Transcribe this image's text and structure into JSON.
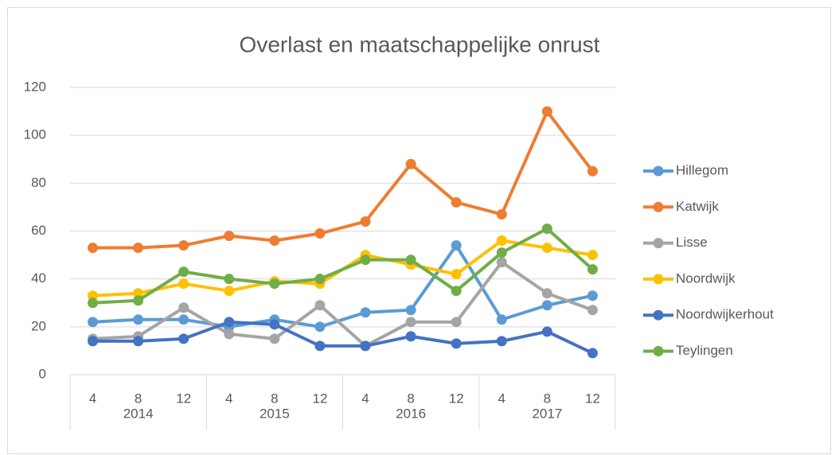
{
  "chart_data": {
    "type": "line",
    "title": "Overlast en maatschappelijke onrust",
    "categories": [
      "4",
      "8",
      "12",
      "4",
      "8",
      "12",
      "4",
      "8",
      "12",
      "4",
      "8",
      "12"
    ],
    "category_groups": [
      "2014",
      "2015",
      "2016",
      "2017"
    ],
    "series": [
      {
        "name": "Hillegom",
        "color": "#5b9bd5",
        "values": [
          22,
          23,
          23,
          20,
          23,
          20,
          26,
          27,
          54,
          23,
          29,
          33
        ]
      },
      {
        "name": "Katwijk",
        "color": "#ed7d31",
        "values": [
          53,
          53,
          54,
          58,
          56,
          59,
          64,
          88,
          72,
          67,
          110,
          85
        ]
      },
      {
        "name": "Lisse",
        "color": "#a5a5a5",
        "values": [
          15,
          16,
          28,
          17,
          15,
          29,
          12,
          22,
          22,
          47,
          34,
          27
        ]
      },
      {
        "name": "Noordwijk",
        "color": "#ffc000",
        "values": [
          33,
          34,
          38,
          35,
          39,
          38,
          50,
          46,
          42,
          56,
          53,
          50
        ]
      },
      {
        "name": "Noordwijkerhout",
        "color": "#4472c4",
        "values": [
          14,
          14,
          15,
          22,
          21,
          12,
          12,
          16,
          13,
          14,
          18,
          9
        ]
      },
      {
        "name": "Teylingen",
        "color": "#70ad47",
        "values": [
          30,
          31,
          43,
          40,
          38,
          40,
          48,
          48,
          35,
          51,
          61,
          44
        ]
      }
    ],
    "ylim": [
      0,
      120
    ],
    "yticks": [
      0,
      20,
      40,
      60,
      80,
      100,
      120
    ],
    "grid": true,
    "legend": "right"
  }
}
